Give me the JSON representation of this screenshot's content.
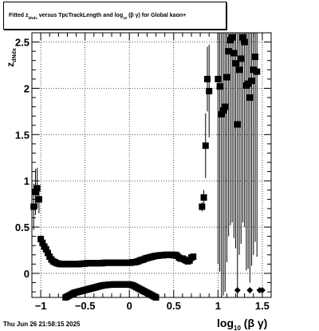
{
  "header": {
    "title_part1": "Fitted  z",
    "title_sub1": "dNdx",
    "title_part2": "  versus TpcTrackLength and log",
    "title_sub2": "10",
    "title_part3": " (β  γ) for Global kaon+"
  },
  "footer": {
    "datetime": "Thu Jun 26 21:58:15 2025"
  },
  "chart_data": {
    "type": "scatter",
    "title": "Fitted z_dNdx versus TpcTrackLength and log10(β γ) for Global kaon+",
    "xlabel": "log10(β γ)",
    "ylabel": "z_dNdx",
    "xlim": [
      -1.1,
      1.6
    ],
    "ylim": [
      -0.26,
      2.6
    ],
    "grid": true,
    "x_ticks": [
      {
        "v": -1,
        "label": "−1"
      },
      {
        "v": -0.5,
        "label": "−0.5"
      },
      {
        "v": 0,
        "label": "0"
      },
      {
        "v": 0.5,
        "label": "0.5"
      },
      {
        "v": 1,
        "label": "1"
      },
      {
        "v": 1.5,
        "label": "1.5"
      }
    ],
    "y_ticks": [
      {
        "v": 0,
        "label": "0"
      },
      {
        "v": 0.5,
        "label": "0.5"
      },
      {
        "v": 1,
        "label": "1"
      },
      {
        "v": 1.5,
        "label": "1.5"
      },
      {
        "v": 2,
        "label": "2"
      },
      {
        "v": 2.5,
        "label": "2.5"
      }
    ],
    "upper_band": [
      [
        -1.08,
        0.72,
        0.25
      ],
      [
        -1.06,
        0.88,
        0.25
      ],
      [
        -1.04,
        0.92,
        0.22
      ],
      [
        -1.02,
        0.8,
        0.15
      ],
      [
        -1.0,
        0.37,
        0.04
      ],
      [
        -0.98,
        0.33,
        0.03
      ],
      [
        -0.96,
        0.29,
        0.02
      ],
      [
        -0.94,
        0.26,
        0.02
      ],
      [
        -0.92,
        0.22,
        0.02
      ],
      [
        -0.9,
        0.18,
        0.02
      ],
      [
        -0.88,
        0.15,
        0.01
      ],
      [
        -0.86,
        0.13,
        0.01
      ],
      [
        -0.84,
        0.12,
        0.01
      ],
      [
        -0.82,
        0.11,
        0
      ],
      [
        -0.8,
        0.105,
        0
      ],
      [
        -0.78,
        0.1,
        0
      ],
      [
        -0.76,
        0.1,
        0
      ],
      [
        -0.74,
        0.1,
        0
      ],
      [
        -0.72,
        0.1,
        0
      ],
      [
        -0.7,
        0.1,
        0
      ],
      [
        -0.68,
        0.1,
        0
      ],
      [
        -0.66,
        0.1,
        0
      ],
      [
        -0.64,
        0.1,
        0
      ],
      [
        -0.62,
        0.1,
        0
      ],
      [
        -0.6,
        0.1,
        0
      ],
      [
        -0.58,
        0.1,
        0
      ],
      [
        -0.56,
        0.1,
        0
      ],
      [
        -0.54,
        0.105,
        0
      ],
      [
        -0.52,
        0.105,
        0
      ],
      [
        -0.5,
        0.105,
        0
      ],
      [
        -0.48,
        0.11,
        0
      ],
      [
        -0.46,
        0.11,
        0
      ],
      [
        -0.44,
        0.11,
        0
      ],
      [
        -0.42,
        0.11,
        0
      ],
      [
        -0.4,
        0.11,
        0
      ],
      [
        -0.38,
        0.11,
        0
      ],
      [
        -0.36,
        0.11,
        0
      ],
      [
        -0.34,
        0.11,
        0
      ],
      [
        -0.32,
        0.11,
        0
      ],
      [
        -0.3,
        0.11,
        0
      ],
      [
        -0.28,
        0.115,
        0
      ],
      [
        -0.26,
        0.115,
        0
      ],
      [
        -0.24,
        0.115,
        0
      ],
      [
        -0.22,
        0.115,
        0
      ],
      [
        -0.2,
        0.115,
        0
      ],
      [
        -0.18,
        0.115,
        0
      ],
      [
        -0.16,
        0.115,
        0
      ],
      [
        -0.14,
        0.115,
        0
      ],
      [
        -0.12,
        0.115,
        0
      ],
      [
        -0.1,
        0.115,
        0
      ],
      [
        -0.08,
        0.115,
        0
      ],
      [
        -0.06,
        0.115,
        0
      ],
      [
        -0.04,
        0.115,
        0
      ],
      [
        -0.02,
        0.115,
        0
      ],
      [
        0.0,
        0.115,
        0
      ],
      [
        0.02,
        0.115,
        0
      ],
      [
        0.04,
        0.12,
        0
      ],
      [
        0.06,
        0.12,
        0
      ],
      [
        0.08,
        0.125,
        0
      ],
      [
        0.1,
        0.13,
        0
      ],
      [
        0.12,
        0.14,
        0
      ],
      [
        0.14,
        0.145,
        0
      ],
      [
        0.16,
        0.15,
        0
      ],
      [
        0.18,
        0.16,
        0
      ],
      [
        0.2,
        0.165,
        0
      ],
      [
        0.22,
        0.17,
        0
      ],
      [
        0.24,
        0.175,
        0
      ],
      [
        0.26,
        0.18,
        0
      ],
      [
        0.28,
        0.185,
        0
      ],
      [
        0.3,
        0.19,
        0
      ],
      [
        0.32,
        0.19,
        0
      ],
      [
        0.34,
        0.195,
        0
      ],
      [
        0.36,
        0.195,
        0
      ],
      [
        0.38,
        0.195,
        0
      ],
      [
        0.4,
        0.2,
        0
      ],
      [
        0.42,
        0.2,
        0
      ],
      [
        0.44,
        0.2,
        0
      ],
      [
        0.46,
        0.2,
        0
      ],
      [
        0.48,
        0.2,
        0
      ],
      [
        0.5,
        0.195,
        0
      ],
      [
        0.52,
        0.2,
        0
      ],
      [
        0.54,
        0.19,
        0
      ],
      [
        0.56,
        0.17,
        0
      ],
      [
        0.58,
        0.16,
        0
      ],
      [
        0.6,
        0.16,
        0
      ],
      [
        0.62,
        0.15,
        0
      ],
      [
        0.64,
        0.14,
        0
      ],
      [
        0.66,
        0.13,
        0
      ],
      [
        0.68,
        0.14,
        0
      ],
      [
        0.7,
        0.17,
        0.02
      ],
      [
        0.72,
        0.18,
        0.03
      ]
    ],
    "lower_band": [
      [
        -0.72,
        -0.26
      ],
      [
        -0.7,
        -0.25
      ],
      [
        -0.68,
        -0.24
      ],
      [
        -0.66,
        -0.23
      ],
      [
        -0.64,
        -0.22
      ],
      [
        -0.62,
        -0.21
      ],
      [
        -0.6,
        -0.205
      ],
      [
        -0.58,
        -0.2
      ],
      [
        -0.56,
        -0.195
      ],
      [
        -0.54,
        -0.19
      ],
      [
        -0.52,
        -0.185
      ],
      [
        -0.5,
        -0.18
      ],
      [
        -0.48,
        -0.175
      ],
      [
        -0.46,
        -0.17
      ],
      [
        -0.44,
        -0.165
      ],
      [
        -0.42,
        -0.16
      ],
      [
        -0.4,
        -0.155
      ],
      [
        -0.38,
        -0.15
      ],
      [
        -0.36,
        -0.145
      ],
      [
        -0.34,
        -0.14
      ],
      [
        -0.32,
        -0.135
      ],
      [
        -0.3,
        -0.13
      ],
      [
        -0.28,
        -0.128
      ],
      [
        -0.26,
        -0.126
      ],
      [
        -0.24,
        -0.124
      ],
      [
        -0.22,
        -0.122
      ],
      [
        -0.2,
        -0.121
      ],
      [
        -0.18,
        -0.12
      ],
      [
        -0.16,
        -0.12
      ],
      [
        -0.14,
        -0.12
      ],
      [
        -0.12,
        -0.12
      ],
      [
        -0.1,
        -0.12
      ],
      [
        -0.08,
        -0.12
      ],
      [
        -0.06,
        -0.12
      ],
      [
        -0.04,
        -0.12
      ],
      [
        -0.02,
        -0.12
      ],
      [
        0.0,
        -0.12
      ],
      [
        0.02,
        -0.125
      ],
      [
        0.04,
        -0.13
      ],
      [
        0.06,
        -0.14
      ],
      [
        0.08,
        -0.15
      ],
      [
        0.1,
        -0.16
      ],
      [
        0.12,
        -0.17
      ],
      [
        0.14,
        -0.18
      ],
      [
        0.16,
        -0.19
      ],
      [
        0.18,
        -0.2
      ],
      [
        0.2,
        -0.21
      ],
      [
        0.22,
        -0.22
      ],
      [
        0.24,
        -0.23
      ],
      [
        0.26,
        -0.24
      ],
      [
        0.28,
        -0.25
      ],
      [
        0.3,
        -0.26
      ]
    ],
    "high_points": [
      [
        0.82,
        0.72,
        0.05
      ],
      [
        0.84,
        0.82,
        0.08
      ],
      [
        0.86,
        1.38,
        0.35
      ],
      [
        0.88,
        2.1,
        0.35
      ],
      [
        0.9,
        1.97,
        0.5
      ],
      [
        1.0,
        2.1,
        2.0
      ],
      [
        1.02,
        2.02,
        2.0
      ],
      [
        1.04,
        1.72,
        2.0
      ],
      [
        1.06,
        1.76,
        2.0
      ],
      [
        1.08,
        1.8,
        2.0
      ],
      [
        1.1,
        2.12,
        2.0
      ],
      [
        1.12,
        2.4,
        2.0
      ],
      [
        1.14,
        2.52,
        2.0
      ],
      [
        1.16,
        2.55,
        2.0
      ],
      [
        1.18,
        2.38,
        2.0
      ],
      [
        1.2,
        2.27,
        2.0
      ],
      [
        1.22,
        1.61,
        2.0
      ],
      [
        1.24,
        2.2,
        2.0
      ],
      [
        1.26,
        2.32,
        2.0
      ],
      [
        1.28,
        2.55,
        2.0
      ],
      [
        1.3,
        2.5,
        2.0
      ],
      [
        1.32,
        2.03,
        2.0
      ],
      [
        1.34,
        2.05,
        2.0
      ],
      [
        1.36,
        1.9,
        2.0
      ],
      [
        1.38,
        2.08,
        2.0
      ],
      [
        1.4,
        2.2,
        2.0
      ],
      [
        1.42,
        2.34,
        2.0
      ],
      [
        1.44,
        2.18,
        2.0
      ]
    ],
    "bottom_diamonds": [
      1.22,
      1.36,
      1.47,
      1.5
    ]
  }
}
